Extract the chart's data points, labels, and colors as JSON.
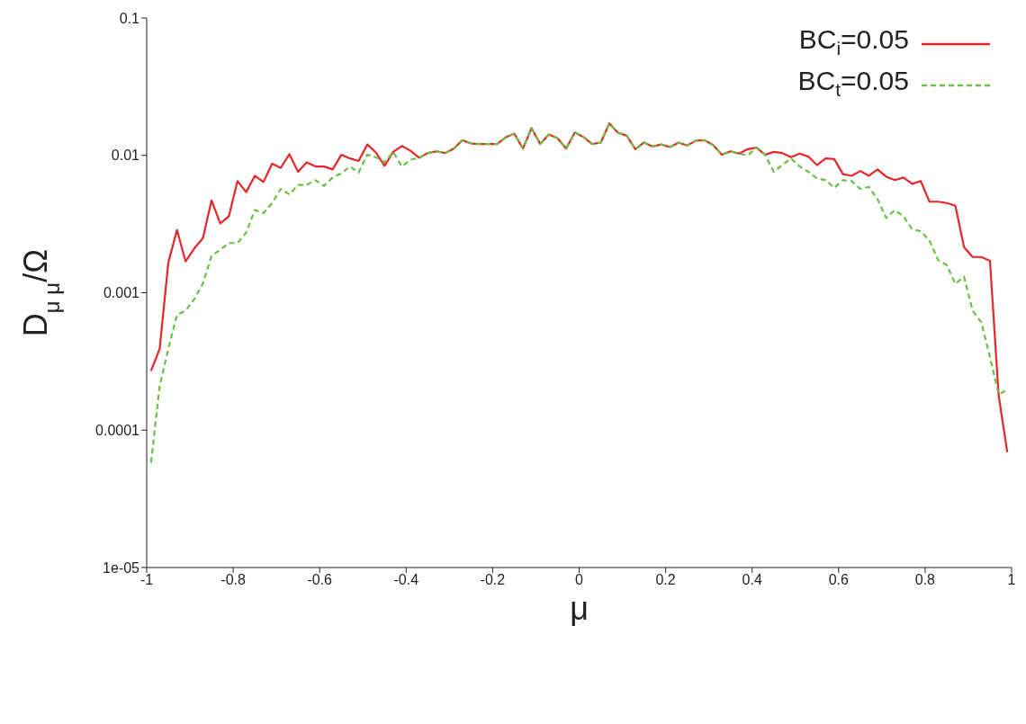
{
  "chart_data": {
    "type": "line",
    "xlabel": "μ",
    "ylabel": "D$_{μ μ}$/Ω",
    "x": [
      -0.99,
      -0.97,
      -0.95,
      -0.93,
      -0.91,
      -0.89,
      -0.87,
      -0.85,
      -0.83,
      -0.81,
      -0.79,
      -0.77,
      -0.75,
      -0.73,
      -0.71,
      -0.69,
      -0.67,
      -0.65,
      -0.63,
      -0.61,
      -0.59,
      -0.57,
      -0.55,
      -0.53,
      -0.51,
      -0.49,
      -0.47,
      -0.45,
      -0.43,
      -0.41,
      -0.39,
      -0.37,
      -0.35,
      -0.33,
      -0.31,
      -0.29,
      -0.27,
      -0.25,
      -0.23,
      -0.21,
      -0.19,
      -0.17,
      -0.15,
      -0.13,
      -0.11,
      -0.09,
      -0.07,
      -0.05,
      -0.03,
      -0.01,
      0.01,
      0.03,
      0.05,
      0.07,
      0.09,
      0.11,
      0.13,
      0.15,
      0.17,
      0.19,
      0.21,
      0.23,
      0.25,
      0.27,
      0.29,
      0.31,
      0.33,
      0.35,
      0.37,
      0.39,
      0.41,
      0.43,
      0.45,
      0.47,
      0.49,
      0.51,
      0.53,
      0.55,
      0.57,
      0.59,
      0.61,
      0.63,
      0.65,
      0.67,
      0.69,
      0.71,
      0.73,
      0.75,
      0.77,
      0.79,
      0.81,
      0.83,
      0.85,
      0.87,
      0.89,
      0.91,
      0.93,
      0.95,
      0.97,
      0.99
    ],
    "series": [
      {
        "name": "BC$_{i}$=0.05",
        "color": "#e8262a",
        "line_style": "solid",
        "values": [
          0.00027,
          0.00039,
          0.00166,
          0.00286,
          0.00169,
          0.0021,
          0.0025,
          0.0047,
          0.0032,
          0.0036,
          0.0065,
          0.0054,
          0.0071,
          0.0064,
          0.0087,
          0.0081,
          0.0102,
          0.0076,
          0.0089,
          0.0083,
          0.0083,
          0.0079,
          0.0101,
          0.0095,
          0.0091,
          0.012,
          0.0105,
          0.0084,
          0.0106,
          0.0117,
          0.0108,
          0.0096,
          0.0104,
          0.0107,
          0.0104,
          0.0112,
          0.0129,
          0.0122,
          0.0121,
          0.0121,
          0.0121,
          0.0135,
          0.0144,
          0.0112,
          0.0158,
          0.0121,
          0.0142,
          0.0133,
          0.0112,
          0.0147,
          0.0136,
          0.0121,
          0.0124,
          0.0171,
          0.0146,
          0.0139,
          0.0111,
          0.0124,
          0.0116,
          0.012,
          0.0115,
          0.0124,
          0.0118,
          0.0128,
          0.0129,
          0.0119,
          0.0101,
          0.0107,
          0.0103,
          0.0111,
          0.0114,
          0.0101,
          0.0106,
          0.0104,
          0.0097,
          0.0103,
          0.0098,
          0.0085,
          0.0095,
          0.0094,
          0.0073,
          0.0071,
          0.0077,
          0.0071,
          0.0079,
          0.007,
          0.0066,
          0.0069,
          0.0062,
          0.0065,
          0.0046,
          0.0046,
          0.0045,
          0.0043,
          0.00215,
          0.00182,
          0.00182,
          0.00171,
          0.00018,
          6.9e-05
        ]
      },
      {
        "name": "BC$_{t}$=0.05",
        "color": "#6abf45",
        "line_style": "dashed",
        "values": [
          5.8e-05,
          0.00021,
          0.00039,
          0.00069,
          0.00074,
          0.0009,
          0.00117,
          0.00185,
          0.00206,
          0.0023,
          0.0023,
          0.00274,
          0.004,
          0.0038,
          0.0045,
          0.0057,
          0.0052,
          0.0061,
          0.0061,
          0.0066,
          0.006,
          0.0069,
          0.0074,
          0.0083,
          0.0075,
          0.0101,
          0.0097,
          0.0089,
          0.0106,
          0.0083,
          0.0093,
          0.0096,
          0.0104,
          0.0107,
          0.0104,
          0.0112,
          0.0129,
          0.0122,
          0.0121,
          0.0121,
          0.0121,
          0.0135,
          0.0144,
          0.0112,
          0.0158,
          0.0121,
          0.0142,
          0.0133,
          0.0112,
          0.0147,
          0.0136,
          0.0121,
          0.0124,
          0.0171,
          0.0146,
          0.0139,
          0.0111,
          0.0124,
          0.0116,
          0.012,
          0.0115,
          0.0124,
          0.0118,
          0.0128,
          0.0129,
          0.0119,
          0.0101,
          0.0107,
          0.0103,
          0.01,
          0.0114,
          0.0101,
          0.0076,
          0.0085,
          0.0095,
          0.0083,
          0.0076,
          0.0068,
          0.0066,
          0.0058,
          0.0066,
          0.0065,
          0.0057,
          0.0059,
          0.0048,
          0.0035,
          0.004,
          0.0036,
          0.0029,
          0.0028,
          0.0024,
          0.00173,
          0.00159,
          0.00116,
          0.00131,
          0.00074,
          0.00061,
          0.00034,
          0.000183,
          0.000196
        ]
      }
    ],
    "log": "y",
    "xlim": [
      -1,
      1
    ],
    "xticks": [
      -1,
      -0.8,
      -0.6,
      -0.4,
      -0.2,
      0,
      0.2,
      0.4,
      0.6,
      0.8,
      1
    ],
    "ylim": [
      1e-05,
      0.1
    ],
    "yticks": [
      {
        "value": 1e-05,
        "label": "1e-05"
      },
      0.0001,
      0.001,
      0.01,
      0.1
    ],
    "legend": "top right",
    "marker": "none"
  }
}
